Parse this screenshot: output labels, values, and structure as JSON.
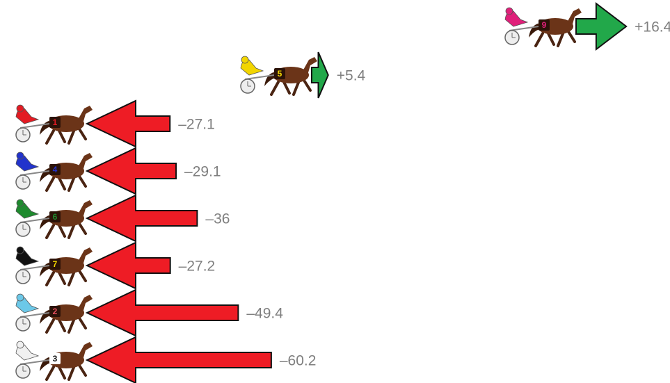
{
  "chart_data": {
    "type": "arrow",
    "categories": [
      "9",
      "5",
      "1",
      "4",
      "6",
      "7",
      "2",
      "3"
    ],
    "values": [
      16.4,
      5.4,
      -27.1,
      -29.1,
      -36,
      -27.2,
      -49.4,
      -60.2
    ],
    "value_labels": [
      "+16.4",
      "+5.4",
      "–27.1",
      "–29.1",
      "–36",
      "–27.2",
      "–49.4",
      "–60.2"
    ],
    "jockey_colors": [
      "#e0207a",
      "#f2d500",
      "#e31b23",
      "#2233cc",
      "#1e8a2e",
      "#111111",
      "#6cc8e8",
      "#f0f0f0"
    ],
    "number_colors": [
      "#e0207a",
      "#f2d500",
      "#e31b23",
      "#2233cc",
      "#1e8a2e",
      "#f2d500",
      "#e85060",
      "#111111"
    ],
    "up_color": "#22a84a",
    "down_color": "#ee1c25"
  }
}
